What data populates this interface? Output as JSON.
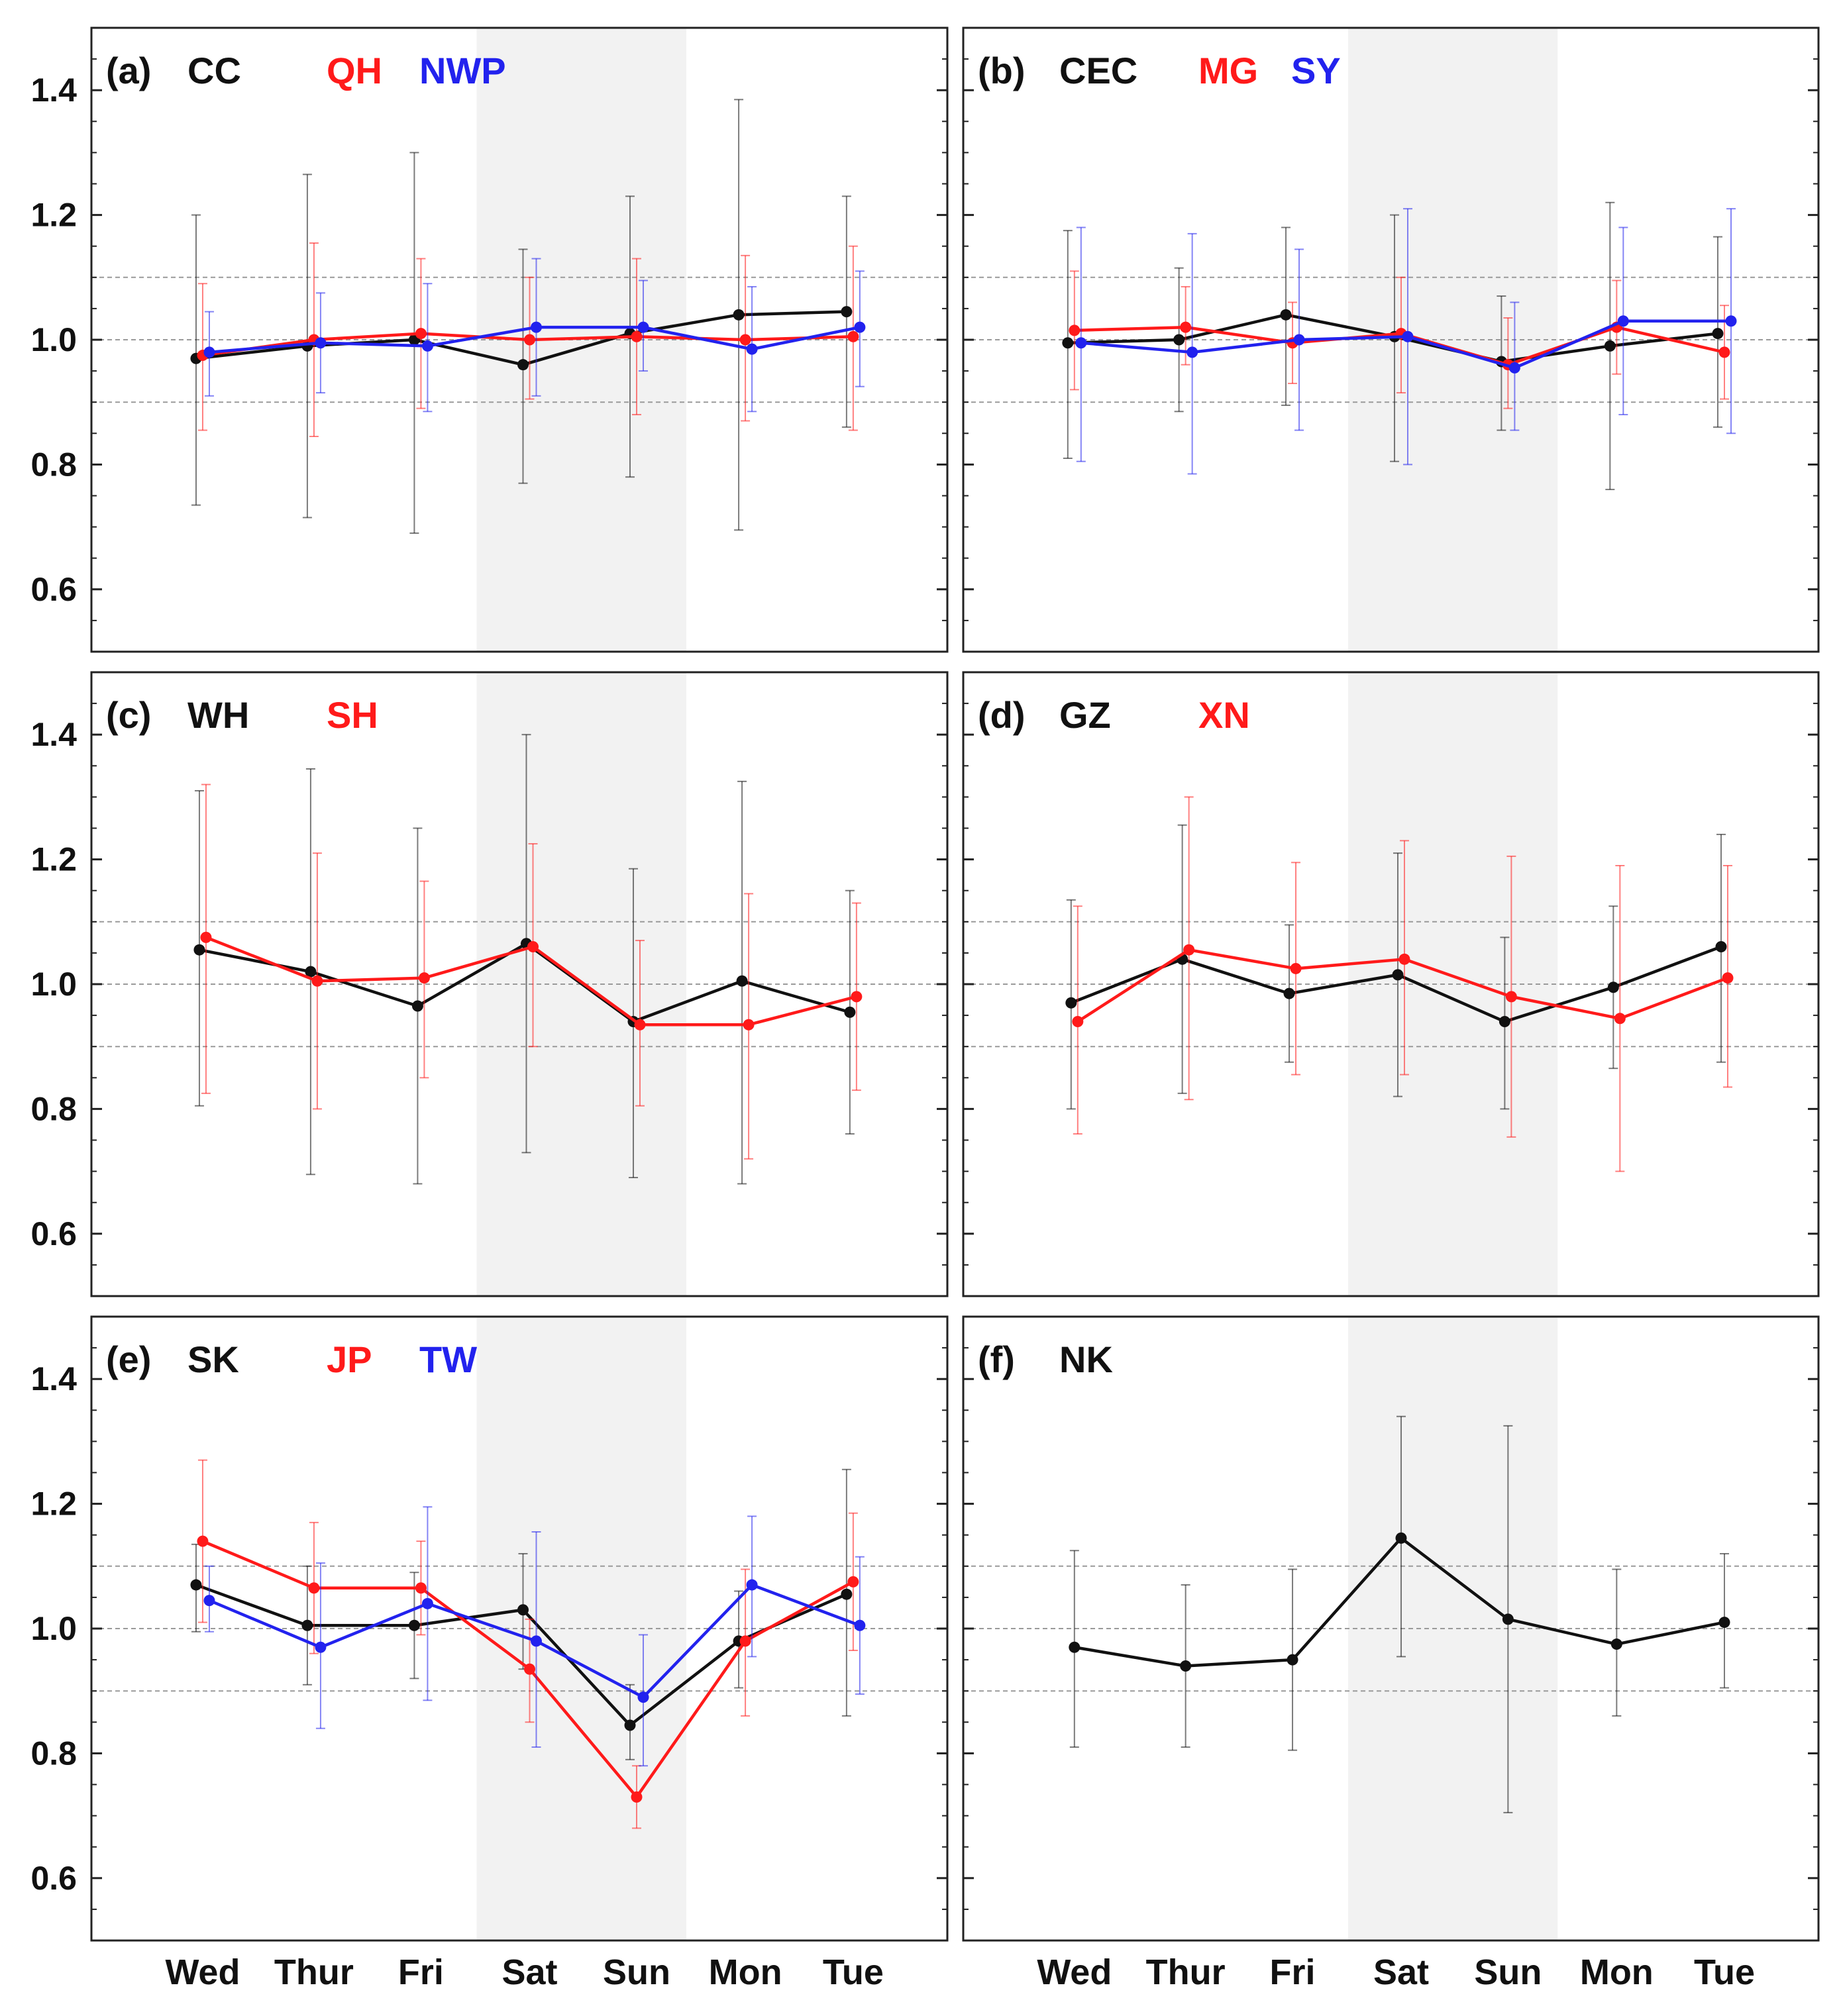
{
  "chart_data": {
    "type": "line",
    "shared_x_categories": [
      "Wed",
      "Thur",
      "Fri",
      "Sat",
      "Sun",
      "Mon",
      "Tue"
    ],
    "weekend_shaded": [
      "Sat",
      "Sun"
    ],
    "y_ticks": [
      "1.4",
      "1.2",
      "1.0",
      "0.8",
      "0.6"
    ],
    "ylim": [
      0.5,
      1.5
    ],
    "reference_lines": [
      0.9,
      1.0,
      1.1
    ],
    "colors": {
      "black": "#111111",
      "red": "#ff1a1a",
      "blue": "#2222ee",
      "shade": "#f2f2f2"
    },
    "panels": [
      {
        "label": "(a)",
        "series": [
          {
            "name": "CC",
            "color": "black",
            "values": [
              0.97,
              0.99,
              1.0,
              0.96,
              1.01,
              1.04,
              1.045
            ],
            "err_low": [
              0.735,
              0.715,
              0.69,
              0.77,
              0.78,
              0.695,
              0.86
            ],
            "err_high": [
              1.2,
              1.265,
              1.3,
              1.145,
              1.23,
              1.385,
              1.23
            ]
          },
          {
            "name": "QH",
            "color": "red",
            "values": [
              0.975,
              1.0,
              1.01,
              1.0,
              1.005,
              1.0,
              1.005
            ],
            "err_low": [
              0.855,
              0.845,
              0.89,
              0.905,
              0.88,
              0.87,
              0.855
            ],
            "err_high": [
              1.09,
              1.155,
              1.13,
              1.1,
              1.13,
              1.135,
              1.15
            ]
          },
          {
            "name": "NWP",
            "color": "blue",
            "values": [
              0.98,
              0.995,
              0.99,
              1.02,
              1.02,
              0.985,
              1.02
            ],
            "err_low": [
              0.91,
              0.915,
              0.885,
              0.91,
              0.95,
              0.885,
              0.925
            ],
            "err_high": [
              1.045,
              1.075,
              1.09,
              1.13,
              1.095,
              1.085,
              1.11
            ]
          }
        ]
      },
      {
        "label": "(b)",
        "series": [
          {
            "name": "CEC",
            "color": "black",
            "values": [
              0.995,
              1.0,
              1.04,
              1.005,
              0.965,
              0.99,
              1.01
            ],
            "err_low": [
              0.81,
              0.885,
              0.895,
              0.805,
              0.855,
              0.76,
              0.86
            ],
            "err_high": [
              1.175,
              1.115,
              1.18,
              1.2,
              1.07,
              1.22,
              1.165
            ]
          },
          {
            "name": "MG",
            "color": "red",
            "values": [
              1.015,
              1.02,
              0.995,
              1.01,
              0.96,
              1.02,
              0.98
            ],
            "err_low": [
              0.92,
              0.96,
              0.93,
              0.915,
              0.89,
              0.945,
              0.905
            ],
            "err_high": [
              1.11,
              1.085,
              1.06,
              1.1,
              1.035,
              1.095,
              1.055
            ]
          },
          {
            "name": "SY",
            "color": "blue",
            "values": [
              0.995,
              0.98,
              1.0,
              1.005,
              0.955,
              1.03,
              1.03
            ],
            "err_low": [
              0.805,
              0.785,
              0.855,
              0.8,
              0.855,
              0.88,
              0.85
            ],
            "err_high": [
              1.18,
              1.17,
              1.145,
              1.21,
              1.06,
              1.18,
              1.21
            ]
          }
        ]
      },
      {
        "label": "(c)",
        "series": [
          {
            "name": "WH",
            "color": "black",
            "values": [
              1.055,
              1.02,
              0.965,
              1.065,
              0.94,
              1.005,
              0.955
            ],
            "err_low": [
              0.805,
              0.695,
              0.68,
              0.73,
              0.69,
              0.68,
              0.76
            ],
            "err_high": [
              1.31,
              1.345,
              1.25,
              1.4,
              1.185,
              1.325,
              1.15
            ]
          },
          {
            "name": "SH",
            "color": "red",
            "values": [
              1.075,
              1.005,
              1.01,
              1.06,
              0.935,
              0.935,
              0.98
            ],
            "err_low": [
              0.825,
              0.8,
              0.85,
              0.9,
              0.805,
              0.72,
              0.83
            ],
            "err_high": [
              1.32,
              1.21,
              1.165,
              1.225,
              1.07,
              1.145,
              1.13
            ]
          }
        ]
      },
      {
        "label": "(d)",
        "series": [
          {
            "name": "GZ",
            "color": "black",
            "values": [
              0.97,
              1.04,
              0.985,
              1.015,
              0.94,
              0.995,
              1.06
            ],
            "err_low": [
              0.8,
              0.825,
              0.875,
              0.82,
              0.8,
              0.865,
              0.875
            ],
            "err_high": [
              1.135,
              1.255,
              1.095,
              1.21,
              1.075,
              1.125,
              1.24
            ]
          },
          {
            "name": "XN",
            "color": "red",
            "values": [
              0.94,
              1.055,
              1.025,
              1.04,
              0.98,
              0.945,
              1.01
            ],
            "err_low": [
              0.76,
              0.815,
              0.855,
              0.855,
              0.755,
              0.7,
              0.835
            ],
            "err_high": [
              1.125,
              1.3,
              1.195,
              1.23,
              1.205,
              1.19,
              1.19
            ]
          }
        ]
      },
      {
        "label": "(e)",
        "series": [
          {
            "name": "SK",
            "color": "black",
            "values": [
              1.07,
              1.005,
              1.005,
              1.03,
              0.845,
              0.98,
              1.055
            ],
            "err_low": [
              0.995,
              0.91,
              0.92,
              0.935,
              0.79,
              0.905,
              0.86
            ],
            "err_high": [
              1.135,
              1.1,
              1.09,
              1.12,
              0.91,
              1.06,
              1.255
            ]
          },
          {
            "name": "JP",
            "color": "red",
            "values": [
              1.14,
              1.065,
              1.065,
              0.935,
              0.73,
              0.98,
              1.075
            ],
            "err_low": [
              1.01,
              0.96,
              0.99,
              0.85,
              0.68,
              0.86,
              0.965
            ],
            "err_high": [
              1.27,
              1.17,
              1.14,
              1.015,
              0.78,
              1.095,
              1.185
            ]
          },
          {
            "name": "TW",
            "color": "blue",
            "values": [
              1.045,
              0.97,
              1.04,
              0.98,
              0.89,
              1.07,
              1.005
            ],
            "err_low": [
              0.995,
              0.84,
              0.885,
              0.81,
              0.78,
              0.955,
              0.895
            ],
            "err_high": [
              1.1,
              1.105,
              1.195,
              1.155,
              0.99,
              1.18,
              1.115
            ]
          }
        ]
      },
      {
        "label": "(f)",
        "series": [
          {
            "name": "NK",
            "color": "black",
            "values": [
              0.97,
              0.94,
              0.95,
              1.145,
              1.015,
              0.975,
              1.01
            ],
            "err_low": [
              0.81,
              0.81,
              0.805,
              0.955,
              0.705,
              0.86,
              0.905
            ],
            "err_high": [
              1.125,
              1.07,
              1.095,
              1.34,
              1.325,
              1.095,
              1.12
            ]
          }
        ]
      }
    ]
  }
}
